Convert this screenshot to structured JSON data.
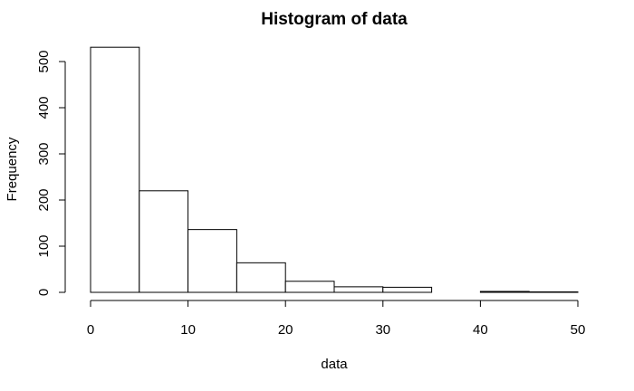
{
  "chart_data": {
    "type": "bar",
    "title": "Histogram of data",
    "xlabel": "data",
    "ylabel": "Frequency",
    "bins": [
      {
        "start": 0,
        "end": 5,
        "count": 531
      },
      {
        "start": 5,
        "end": 10,
        "count": 220
      },
      {
        "start": 10,
        "end": 15,
        "count": 136
      },
      {
        "start": 15,
        "end": 20,
        "count": 64
      },
      {
        "start": 20,
        "end": 25,
        "count": 24
      },
      {
        "start": 25,
        "end": 30,
        "count": 12
      },
      {
        "start": 30,
        "end": 35,
        "count": 11
      },
      {
        "start": 35,
        "end": 40,
        "count": 0
      },
      {
        "start": 40,
        "end": 45,
        "count": 2
      },
      {
        "start": 45,
        "end": 50,
        "count": 1
      }
    ],
    "x_ticks": [
      0,
      10,
      20,
      30,
      40,
      50
    ],
    "y_ticks": [
      0,
      100,
      200,
      300,
      400,
      500
    ],
    "xlim": [
      0,
      50
    ],
    "ylim": [
      0,
      531
    ],
    "grid": false,
    "bar_fill": "#ffffff",
    "bar_stroke": "#000000"
  }
}
